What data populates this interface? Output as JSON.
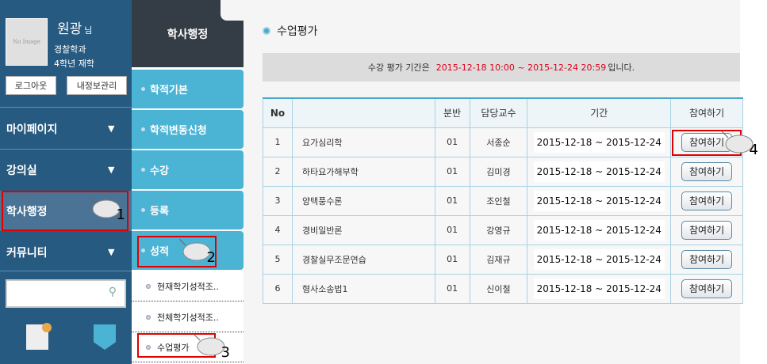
{
  "user": {
    "photo_placeholder": "No Image",
    "name": "원광",
    "honorific": "님",
    "department": "경찰학과",
    "status": "4학년 재학",
    "logout_label": "로그아웃",
    "myinfo_label": "내정보관리"
  },
  "left_menu": [
    {
      "label": "마이페이지"
    },
    {
      "label": "강의실"
    },
    {
      "label": "학사행정"
    },
    {
      "label": "커뮤니티"
    }
  ],
  "search": {
    "placeholder": "",
    "value": ""
  },
  "mid": {
    "title": "학사행정",
    "items": [
      {
        "label": "학적기본"
      },
      {
        "label": "학적변동신청"
      },
      {
        "label": "수강"
      },
      {
        "label": "등록"
      },
      {
        "label": "성적"
      }
    ],
    "subitems": [
      {
        "label": "현재학기성적조.."
      },
      {
        "label": "전체학기성적조.."
      },
      {
        "label": "수업평가"
      }
    ]
  },
  "page": {
    "title": "수업평가",
    "notice_prefix": "수강 평가 기간은",
    "notice_period": "2015-12-18 10:00 ~ 2015-12-24 20:59",
    "notice_suffix": "입니다."
  },
  "table": {
    "headers": [
      "No",
      "",
      "분반",
      "담당교수",
      "기간",
      "참여하기"
    ],
    "rows": [
      {
        "no": "1",
        "course": "요가심리학",
        "section": "01",
        "professor": "서종순",
        "period": "2015-12-18 ~ 2015-12-24",
        "action": "참여하기"
      },
      {
        "no": "2",
        "course": "하타요가해부학",
        "section": "01",
        "professor": "김미경",
        "period": "2015-12-18 ~ 2015-12-24",
        "action": "참여하기"
      },
      {
        "no": "3",
        "course": "양택풍수론",
        "section": "01",
        "professor": "조인철",
        "period": "2015-12-18 ~ 2015-12-24",
        "action": "참여하기"
      },
      {
        "no": "4",
        "course": "경비일반론",
        "section": "01",
        "professor": "강영규",
        "period": "2015-12-18 ~ 2015-12-24",
        "action": "참여하기"
      },
      {
        "no": "5",
        "course": "경찰실무조문연습",
        "section": "01",
        "professor": "김재규",
        "period": "2015-12-18 ~ 2015-12-24",
        "action": "참여하기"
      },
      {
        "no": "6",
        "course": "형사소송법1",
        "section": "01",
        "professor": "신이철",
        "period": "2015-12-18 ~ 2015-12-24",
        "action": "참여하기"
      }
    ]
  },
  "steps": [
    "1",
    "2",
    "3",
    "4"
  ],
  "colors": {
    "sidebar": "#275a80",
    "submenu": "#4bb3d4",
    "highlight": "#e00000",
    "period_text": "#e0001a"
  }
}
